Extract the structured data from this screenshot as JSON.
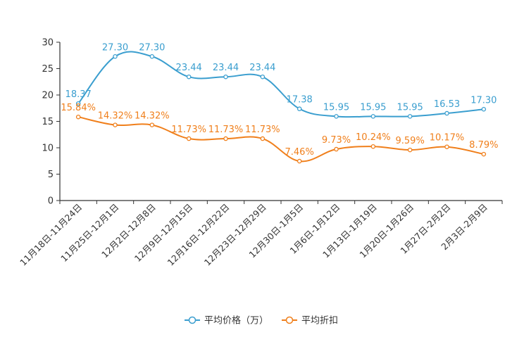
{
  "chart_data": {
    "type": "line",
    "title": "",
    "xlabel": "",
    "ylabel": "",
    "ylim": [
      0,
      30
    ],
    "yticks": [
      0,
      5,
      10,
      15,
      20,
      25,
      30
    ],
    "grid": false,
    "legend_position": "bottom-center",
    "categories": [
      "11月18日-11月24日",
      "11月25日-12月1日",
      "12月2日-12月8日",
      "12月9日-12月15日",
      "12月16日-12月22日",
      "12月23日-12月29日",
      "12月30日-1月5日",
      "1月6日-1月12日",
      "1月13日-1月19日",
      "1月20日-1月26日",
      "1月27日-2月2日",
      "2月3日-2月9日"
    ],
    "series": [
      {
        "name": "平均价格（万）",
        "color": "#3a9ecf",
        "values": [
          18.37,
          27.3,
          27.3,
          23.44,
          23.44,
          23.44,
          17.38,
          15.95,
          15.95,
          15.95,
          16.53,
          17.3
        ],
        "labels": [
          "18.37",
          "27.30",
          "27.30",
          "23.44",
          "23.44",
          "23.44",
          "17.38",
          "15.95",
          "15.95",
          "15.95",
          "16.53",
          "17.30"
        ]
      },
      {
        "name": "平均折扣",
        "color": "#f07f1b",
        "values": [
          15.84,
          14.32,
          14.32,
          11.73,
          11.73,
          11.73,
          7.46,
          9.73,
          10.24,
          9.59,
          10.17,
          8.79
        ],
        "labels": [
          "15.84%",
          "14.32%",
          "14.32%",
          "11.73%",
          "11.73%",
          "11.73%",
          "7.46%",
          "9.73%",
          "10.24%",
          "9.59%",
          "10.17%",
          "8.79%"
        ]
      }
    ]
  }
}
